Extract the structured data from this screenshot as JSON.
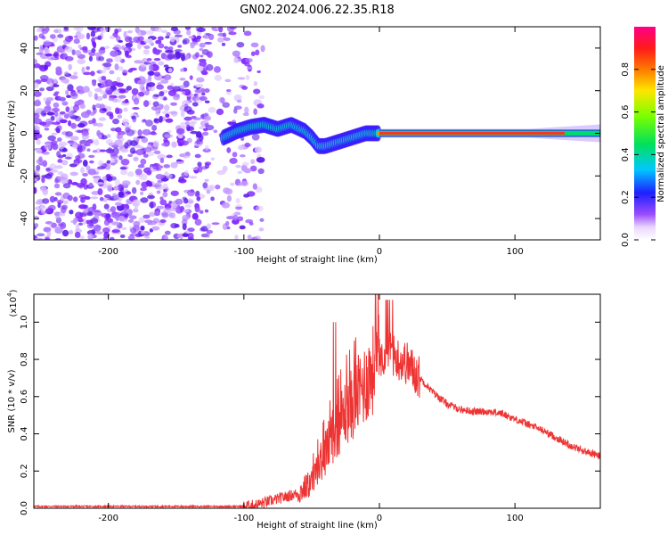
{
  "title": "GN02.2024.006.22.35.R18",
  "chart_data": [
    {
      "type": "heatmap",
      "xlabel": "Height of straight line (km)",
      "ylabel": "Frequency (Hz)",
      "xlim": [
        -255,
        163
      ],
      "ylim": [
        -50,
        50
      ],
      "xticks": [
        -200,
        -100,
        0,
        100
      ],
      "yticks": [
        -40,
        -20,
        0,
        20,
        40
      ],
      "colorbar": {
        "label": "Normalized spectral amplitude",
        "range": [
          0,
          1
        ],
        "ticks": [
          0.0,
          0.2,
          0.4,
          0.6,
          0.8
        ]
      },
      "noise_region": {
        "x": [
          -255,
          -105
        ],
        "y": [
          -50,
          50
        ]
      },
      "signal_track": [
        {
          "x": -115,
          "y": -2
        },
        {
          "x": -105,
          "y": 1
        },
        {
          "x": -95,
          "y": 3
        },
        {
          "x": -85,
          "y": 4
        },
        {
          "x": -75,
          "y": 2
        },
        {
          "x": -65,
          "y": 4
        },
        {
          "x": -55,
          "y": 1
        },
        {
          "x": -50,
          "y": -2
        },
        {
          "x": -45,
          "y": -6
        },
        {
          "x": -40,
          "y": -6
        },
        {
          "x": -30,
          "y": -4
        },
        {
          "x": -20,
          "y": -2
        },
        {
          "x": -10,
          "y": 0
        },
        {
          "x": 0,
          "y": 0
        }
      ],
      "carrier_line": {
        "x": [
          0,
          163
        ],
        "y": 0
      }
    },
    {
      "type": "line",
      "xlabel": "Height of straight line (km)",
      "ylabel": "SNR (10 * v/v)",
      "y_multiplier": "(x10",
      "y_multiplier_exp": "4",
      "y_multiplier_close": ")",
      "xlim": [
        -255,
        163
      ],
      "ylim": [
        0,
        1.15
      ],
      "xticks": [
        -200,
        -100,
        0,
        100
      ],
      "yticks": [
        0.0,
        0.2,
        0.4,
        0.6,
        0.8,
        1.0
      ],
      "color": "#ee3333",
      "series": [
        {
          "x": [
            -255,
            -200,
            -150,
            -100,
            -90,
            -75,
            -60,
            -50,
            -45,
            -40,
            -35,
            -30,
            -25,
            -20,
            -15,
            -10,
            -5,
            0,
            5,
            10,
            15,
            20,
            25,
            30,
            40,
            50,
            60,
            70,
            80,
            90,
            100,
            110,
            120,
            130,
            140,
            150,
            163
          ],
          "values": [
            0.01,
            0.01,
            0.01,
            0.01,
            0.02,
            0.05,
            0.08,
            0.14,
            0.22,
            0.3,
            0.38,
            0.45,
            0.52,
            0.56,
            0.62,
            0.68,
            0.74,
            0.8,
            0.86,
            0.82,
            0.8,
            0.78,
            0.74,
            0.7,
            0.62,
            0.56,
            0.53,
            0.52,
            0.52,
            0.51,
            0.48,
            0.45,
            0.42,
            0.38,
            0.34,
            0.31,
            0.28
          ]
        }
      ]
    }
  ]
}
